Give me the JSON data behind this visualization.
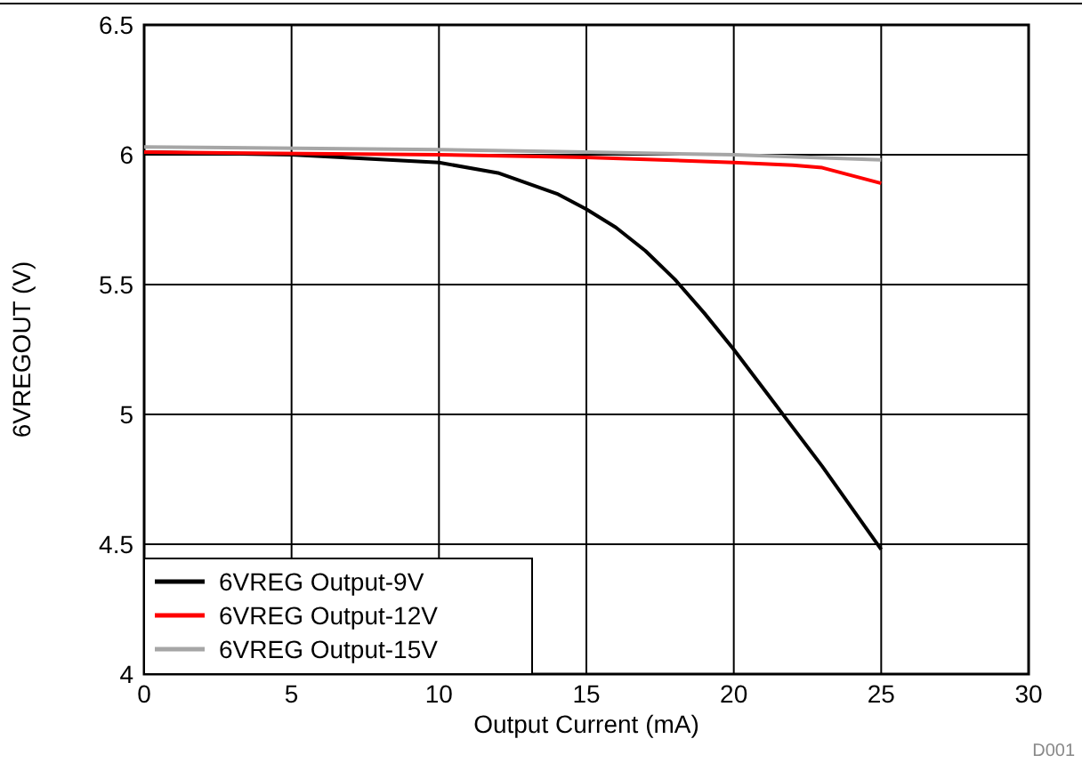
{
  "chart_data": {
    "type": "line",
    "xlabel": "Output Current (mA)",
    "ylabel": "6VREGOUT (V)",
    "annotations": [
      "D001"
    ],
    "xlim": [
      0,
      30
    ],
    "xticks": [
      0,
      5,
      10,
      15,
      20,
      25,
      30
    ],
    "ylim": [
      4,
      6.5
    ],
    "yticks": [
      4,
      4.5,
      5,
      5.5,
      6,
      6.5
    ],
    "grid": true,
    "legend": "bottom left",
    "line_style": "solid",
    "marker": "none",
    "series": [
      {
        "name": "6VREG Output-9V",
        "color": "#000000",
        "x": [
          0,
          5,
          10,
          12,
          14,
          15,
          16,
          17,
          18,
          19,
          20,
          21,
          22,
          23,
          24,
          25
        ],
        "values": [
          6.01,
          6.0,
          5.97,
          5.93,
          5.85,
          5.79,
          5.72,
          5.63,
          5.52,
          5.39,
          5.25,
          5.1,
          4.95,
          4.8,
          4.64,
          4.48
        ]
      },
      {
        "name": "6VREG Output-12V",
        "color": "#ff0000",
        "x": [
          0,
          10,
          15,
          20,
          22,
          23,
          24,
          25
        ],
        "values": [
          6.01,
          6.0,
          5.99,
          5.97,
          5.96,
          5.95,
          5.92,
          5.89
        ]
      },
      {
        "name": "6VREG Output-15V",
        "color": "#a6a6a6",
        "x": [
          0,
          10,
          15,
          20,
          25
        ],
        "values": [
          6.03,
          6.02,
          6.01,
          6.0,
          5.98
        ]
      }
    ]
  }
}
